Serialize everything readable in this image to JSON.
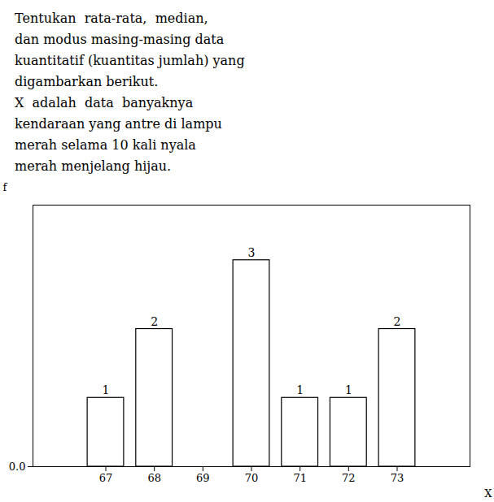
{
  "chart_data": {
    "type": "bar",
    "annotations": [
      "Tentukan  rata-rata,  median,",
      "dan modus masing-masing data",
      "kuantitatif (kuantitas jumlah) yang",
      "digambarkan berikut.",
      "X  adalah  data  banyaknya",
      "kendaraan yang antre di lampu",
      "merah selama 10 kali nyala",
      "merah menjelang hijau."
    ],
    "x": [
      67,
      68,
      69,
      70,
      71,
      72,
      73
    ],
    "values": [
      1,
      2,
      0,
      3,
      1,
      1,
      2
    ],
    "value_labels": [
      "1",
      "2",
      null,
      "3",
      "1",
      "1",
      "2"
    ],
    "data_labels": true,
    "color": "#ffffff",
    "x_label": "X",
    "y_label": "f",
    "xlim": [
      65.5,
      74.5
    ],
    "xticks": [
      67,
      68,
      69,
      70,
      71,
      72,
      73
    ],
    "ylim": [
      0,
      3.8
    ],
    "yticks": [
      0
    ],
    "grid": false
  }
}
